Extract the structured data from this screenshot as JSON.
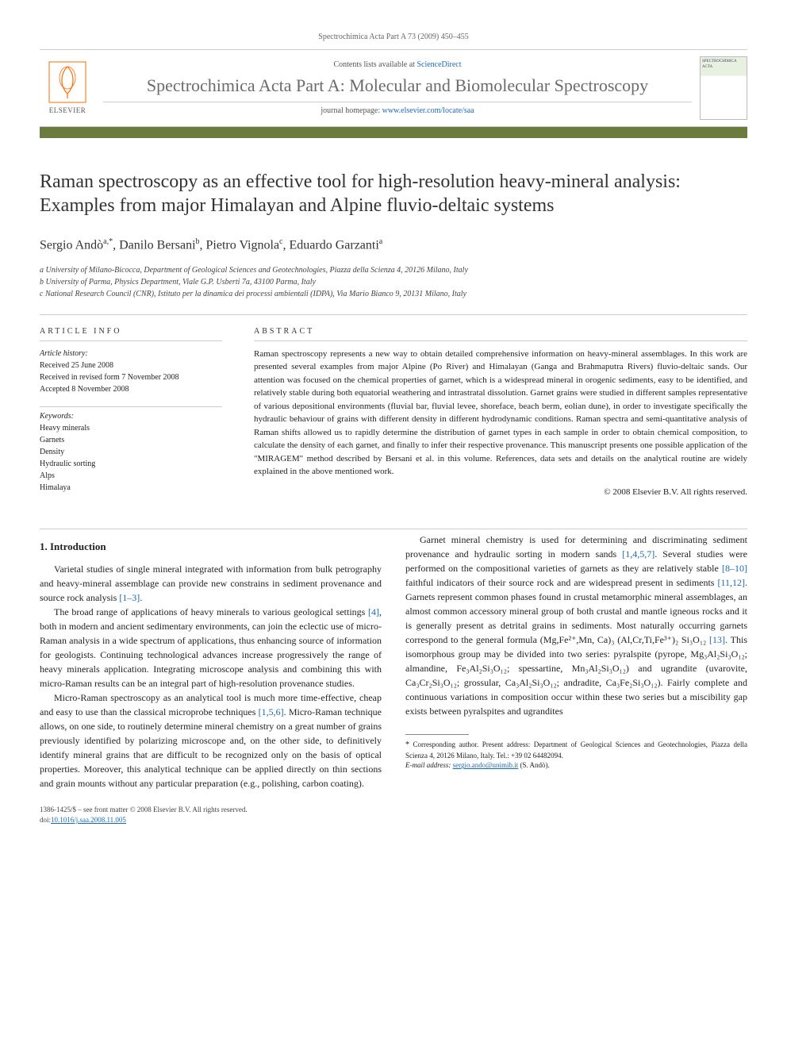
{
  "header": {
    "citation": "Spectrochimica Acta Part A 73 (2009) 450–455"
  },
  "masthead": {
    "publisher": "ELSEVIER",
    "contents_prefix": "Contents lists available at ",
    "contents_link": "ScienceDirect",
    "journal_name": "Spectrochimica Acta Part A: Molecular and Biomolecular Spectroscopy",
    "homepage_prefix": "journal homepage: ",
    "homepage_link": "www.elsevier.com/locate/saa",
    "cover_label": "SPECTROCHIMICA ACTA"
  },
  "article": {
    "title": "Raman spectroscopy as an effective tool for high-resolution heavy-mineral analysis: Examples from major Himalayan and Alpine fluvio-deltaic systems",
    "authors_html": "Sergio Andò<sup>a,*</sup>, Danilo Bersani<sup>b</sup>, Pietro Vignola<sup>c</sup>, Eduardo Garzanti<sup>a</sup>",
    "affiliations": [
      "a University of Milano-Bicocca, Department of Geological Sciences and Geotechnologies, Piazza della Scienza 4, 20126 Milano, Italy",
      "b University of Parma, Physics Department, Viale G.P. Usberti 7a, 43100 Parma, Italy",
      "c National Research Council (CNR), Istituto per la dinamica dei processi ambientali (IDPA), Via Mario Bianco 9, 20131 Milano, Italy"
    ]
  },
  "info": {
    "heading": "ARTICLE INFO",
    "history_label": "Article history:",
    "history": [
      "Received 25 June 2008",
      "Received in revised form 7 November 2008",
      "Accepted 8 November 2008"
    ],
    "keywords_label": "Keywords:",
    "keywords": [
      "Heavy minerals",
      "Garnets",
      "Density",
      "Hydraulic sorting",
      "Alps",
      "Himalaya"
    ]
  },
  "abstract": {
    "heading": "ABSTRACT",
    "text": "Raman spectroscopy represents a new way to obtain detailed comprehensive information on heavy-mineral assemblages. In this work are presented several examples from major Alpine (Po River) and Himalayan (Ganga and Brahmaputra Rivers) fluvio-deltaic sands. Our attention was focused on the chemical properties of garnet, which is a widespread mineral in orogenic sediments, easy to be identified, and relatively stable during both equatorial weathering and intrastratal dissolution. Garnet grains were studied in different samples representative of various depositional environments (fluvial bar, fluvial levee, shoreface, beach berm, eolian dune), in order to investigate specifically the hydraulic behaviour of grains with different density in different hydrodynamic conditions. Raman spectra and semi-quantitative analysis of Raman shifts allowed us to rapidly determine the distribution of garnet types in each sample in order to obtain chemical composition, to calculate the density of each garnet, and finally to infer their respective provenance. This manuscript presents one possible application of the \"MIRAGEM\" method described by Bersani et al. in this volume. References, data sets and details on the analytical routine are widely explained in the above mentioned work.",
    "copyright": "© 2008 Elsevier B.V. All rights reserved."
  },
  "body": {
    "section_number": "1.",
    "section_title": "Introduction",
    "p1": "Varietal studies of single mineral integrated with information from bulk petrography and heavy-mineral assemblage can provide new constrains in sediment provenance and source rock analysis ",
    "p1_ref": "[1–3]",
    "p1_end": ".",
    "p2": "The broad range of applications of heavy minerals to various geological settings ",
    "p2_ref": "[4]",
    "p2_cont": ", both in modern and ancient sedimentary environments, can join the eclectic use of micro-Raman analysis in a wide spectrum of applications, thus enhancing source of information for geologists. Continuing technological advances increase progressively the range of heavy minerals application. Integrating microscope analysis and combining this with micro-Raman results can be an integral part of high-resolution provenance studies.",
    "p3a": "Micro-Raman spectroscopy as an analytical tool is much more time-effective, cheap and easy to use than the classical microprobe techniques ",
    "p3_ref": "[1,5,6]",
    "p3b": ". Micro-Raman technique allows, on one side, to routinely determine mineral chemistry on a great number of grains previously identified by polarizing microscope and, on the other side, to definitively identify mineral grains that are difficult to be recognized only on the basis of optical properties. Moreover, this analytical technique can be applied directly on thin sections and grain mounts without any particular preparation (e.g., polishing, carbon coating).",
    "p4a": "Garnet mineral chemistry is used for determining and discriminating sediment provenance and hydraulic sorting in modern sands ",
    "p4_ref1": "[1,4,5,7]",
    "p4b": ". Several studies were performed on the compositional varieties of garnets as they are relatively stable ",
    "p4_ref2": "[8–10]",
    "p4c": " faithful indicators of their source rock and are widespread present in sediments ",
    "p4_ref3": "[11,12]",
    "p4d": ". Garnets represent common phases found in crustal metamorphic mineral assemblages, an almost common accessory mineral group of both crustal and mantle igneous rocks and it is generally present as detrital grains in sediments. Most naturally occurring garnets correspond to the general formula (Mg,Fe²⁺,Mn, Ca)₃ (Al,Cr,Ti,Fe³⁺)₂ Si₃O₁₂ ",
    "p4_ref4": "[13]",
    "p4e": ". This isomorphous group may be divided into two series: pyralspite (pyrope, Mg₃Al₂Si₃O₁₂; almandine, Fe₃Al₂Si₃O₁₂; spessartine, Mn₃Al₂Si₃O₁₂) and ugrandite (uvarovite, Ca₃Cr₂Si₃O₁₂; grossular, Ca₃Al₂Si₃O₁₂; andradite, Ca₃Fe₂Si₃O₁₂). Fairly complete and continuous variations in composition occur within these two series but a miscibility gap exists between pyralspites and ugrandites"
  },
  "footnote": {
    "star": "*",
    "text": "Corresponding author. Present address: Department of Geological Sciences and Geotechnologies, Piazza della Scienza 4, 20126 Milano, Italy. Tel.: +39 02 64482094.",
    "email_label": "E-mail address: ",
    "email": "sergio.ando@unimib.it",
    "email_suffix": " (S. Andò)."
  },
  "footer": {
    "issn": "1386-1425/$ – see front matter © 2008 Elsevier B.V. All rights reserved.",
    "doi_label": "doi:",
    "doi": "10.1016/j.saa.2008.11.005"
  },
  "colors": {
    "accent_bar": "#6b7a3f",
    "link": "#1b6ab3",
    "publisher": "#ff6b00"
  }
}
